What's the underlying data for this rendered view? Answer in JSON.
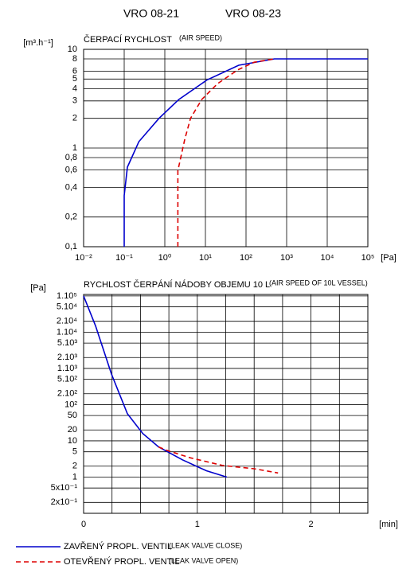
{
  "header": [
    "VRO 08-21",
    "VRO 08-23"
  ],
  "chart_data": [
    {
      "type": "line",
      "title": "ČERPACÍ RYCHLOST",
      "subtitle": "(AIR SPEED)",
      "y_label": "[m³.h⁻¹]",
      "x_label": "[Pa]",
      "log_x": true,
      "log_y": true,
      "grid": true,
      "xlim": [
        0.01,
        100000
      ],
      "ylim": [
        0.1,
        10
      ],
      "xticks": [
        {
          "value": 0.01,
          "label": "10⁻²"
        },
        {
          "value": 0.1,
          "label": "10⁻¹"
        },
        {
          "value": 1,
          "label": "10⁰"
        },
        {
          "value": 10,
          "label": "10¹"
        },
        {
          "value": 100,
          "label": "10²"
        },
        {
          "value": 1000,
          "label": "10³"
        },
        {
          "value": 10000,
          "label": "10⁴"
        },
        {
          "value": 100000,
          "label": "10⁵"
        }
      ],
      "yticks": [
        {
          "value": 0.1,
          "label": "0,1"
        },
        {
          "value": 0.2,
          "label": "0,2"
        },
        {
          "value": 0.4,
          "label": "0,4"
        },
        {
          "value": 0.6,
          "label": "0,6"
        },
        {
          "value": 0.8,
          "label": "0,8"
        },
        1,
        2,
        3,
        4,
        5,
        6,
        8,
        10
      ],
      "series": [
        {
          "name": "ZAVŘENÝ  PROPL.  VENTIL",
          "note": "(LEAK VALVE CLOSE)",
          "color": "#0000cc",
          "style": "solid",
          "x": [
            0.1,
            0.1,
            0.12,
            0.23,
            0.72,
            2.2,
            11,
            66,
            500,
            100000
          ],
          "values": [
            0.1,
            0.33,
            0.64,
            1.16,
            2,
            3.1,
            4.9,
            6.9,
            8,
            8
          ]
        },
        {
          "name": "OTEVŘENÝ  PROPL.  VENTIL",
          "note": "(LEAK VALVE OPEN)",
          "color": "#dd0000",
          "style": "dashed",
          "x": [
            2.1,
            2.1,
            3.1,
            4.3,
            8.1,
            20,
            63,
            160,
            500
          ],
          "values": [
            0.1,
            0.59,
            1.23,
            2,
            3.1,
            4.5,
            6.2,
            7.4,
            8
          ]
        }
      ]
    },
    {
      "type": "line",
      "title": "RYCHLOST ČERPÁNÍ NÁDOBY OBJEMU 10 L",
      "subtitle": "(AIR SPEED OF 10L VESSEL)",
      "y_label": "[Pa]",
      "x_label": "[min]",
      "log_y": true,
      "grid": true,
      "xlim": [
        0,
        2.5
      ],
      "ylim": [
        0.1,
        110000
      ],
      "xticks": [
        0,
        1,
        2
      ],
      "xminor": [
        0.25,
        0.5,
        0.75,
        1.25,
        1.5,
        1.75,
        2.25
      ],
      "yticks": [
        {
          "value": 100000,
          "label": "1.10⁵"
        },
        {
          "value": 50000,
          "label": "5.10⁴"
        },
        {
          "value": 20000,
          "label": "2.10⁴"
        },
        {
          "value": 10000,
          "label": "1.10⁴"
        },
        {
          "value": 5000,
          "label": "5.10³"
        },
        {
          "value": 2000,
          "label": "2.10³"
        },
        {
          "value": 1000,
          "label": "1.10³"
        },
        {
          "value": 500,
          "label": "5.10²"
        },
        {
          "value": 200,
          "label": "2.10²"
        },
        {
          "value": 100,
          "label": "10²"
        },
        50,
        20,
        10,
        5,
        2,
        1,
        {
          "value": 0.5,
          "label": "5x10⁻¹"
        },
        {
          "value": 0.2,
          "label": "2x10⁻¹"
        }
      ],
      "series": [
        {
          "color": "#0000cc",
          "style": "solid",
          "x": [
            0,
            0.105,
            0.245,
            0.385,
            0.52,
            0.66,
            0.87,
            1.08,
            1.26
          ],
          "values": [
            100000,
            15000,
            700,
            56,
            16,
            6.8,
            3,
            1.5,
            1
          ]
        },
        {
          "color": "#dd0000",
          "style": "dashed",
          "x": [
            0.66,
            0.73,
            0.94,
            1.22,
            1.5,
            1.71
          ],
          "values": [
            6.8,
            5.5,
            3.4,
            2.1,
            1.7,
            1.3
          ]
        }
      ]
    }
  ]
}
